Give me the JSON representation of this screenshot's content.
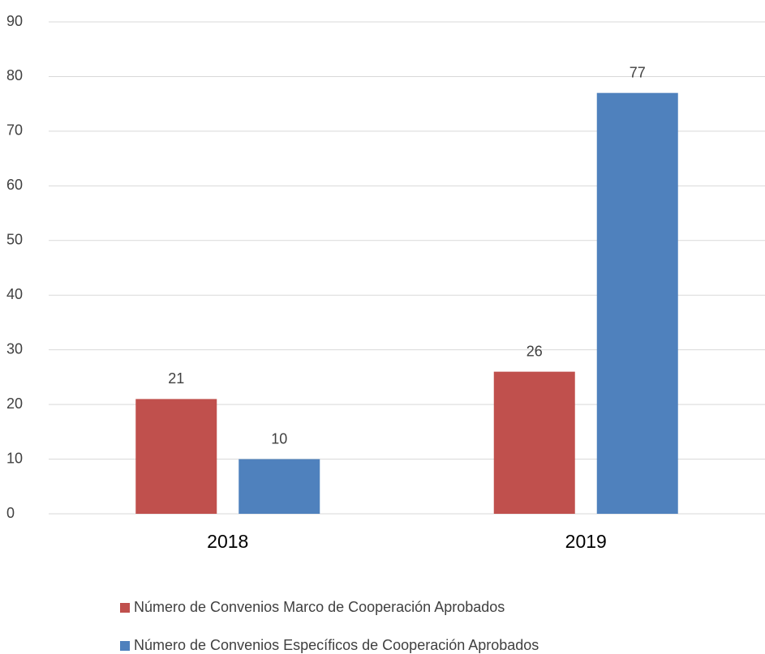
{
  "chart_data": {
    "type": "bar",
    "categories": [
      "2018",
      "2019"
    ],
    "series": [
      {
        "name": "Número de Convenios Marco de Cooperación Aprobados",
        "color": "#c0504d",
        "values": [
          21,
          26
        ]
      },
      {
        "name": "Número de Convenios Específicos de Cooperación Aprobados",
        "color": "#4f81bd",
        "values": [
          10,
          77
        ]
      }
    ],
    "ylim": [
      0,
      90
    ],
    "yticks": [
      0,
      10,
      20,
      30,
      40,
      50,
      60,
      70,
      80,
      90
    ],
    "grid": true,
    "legend": "bottom"
  }
}
